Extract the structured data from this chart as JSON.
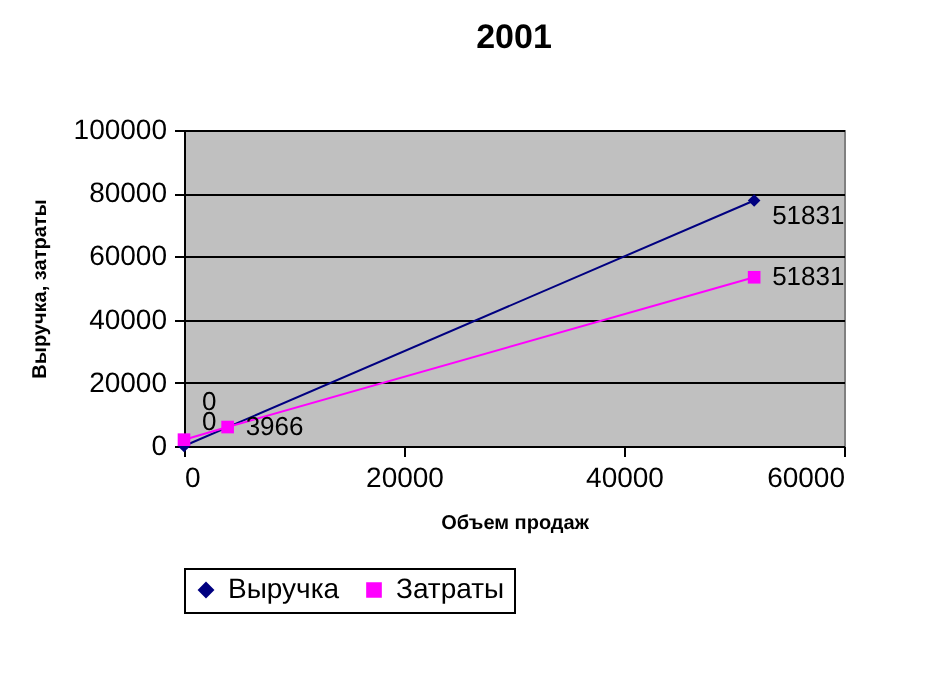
{
  "chart_data": {
    "type": "line",
    "title": "2001",
    "xlabel": "Объем продаж",
    "ylabel": "Выручка, затраты",
    "xlim": [
      0,
      60000
    ],
    "xticks": [
      0,
      20000,
      40000,
      60000
    ],
    "ylim": [
      0,
      100000
    ],
    "yticks": [
      0,
      20000,
      40000,
      60000,
      80000,
      100000
    ],
    "grid": "y",
    "legend": "bottom",
    "series": [
      {
        "name": "Выручка",
        "color": "#000080",
        "marker": "diamond",
        "x": [
          0,
          51831
        ],
        "values": [
          0,
          77700
        ]
      },
      {
        "name": "Затраты",
        "color": "#ff00ff",
        "marker": "square",
        "x": [
          0,
          3966,
          51831
        ],
        "values": [
          2000,
          6000,
          53400
        ]
      }
    ],
    "annotations": [
      {
        "text": "0",
        "x": 0,
        "y": 0
      },
      {
        "text": "51831",
        "x": 51831,
        "y": 77700
      },
      {
        "text": "0",
        "x": 0,
        "y": 2000
      },
      {
        "text": "3966",
        "x": 3966,
        "y": 6000
      },
      {
        "text": "51831",
        "x": 51831,
        "y": 53400
      }
    ]
  }
}
